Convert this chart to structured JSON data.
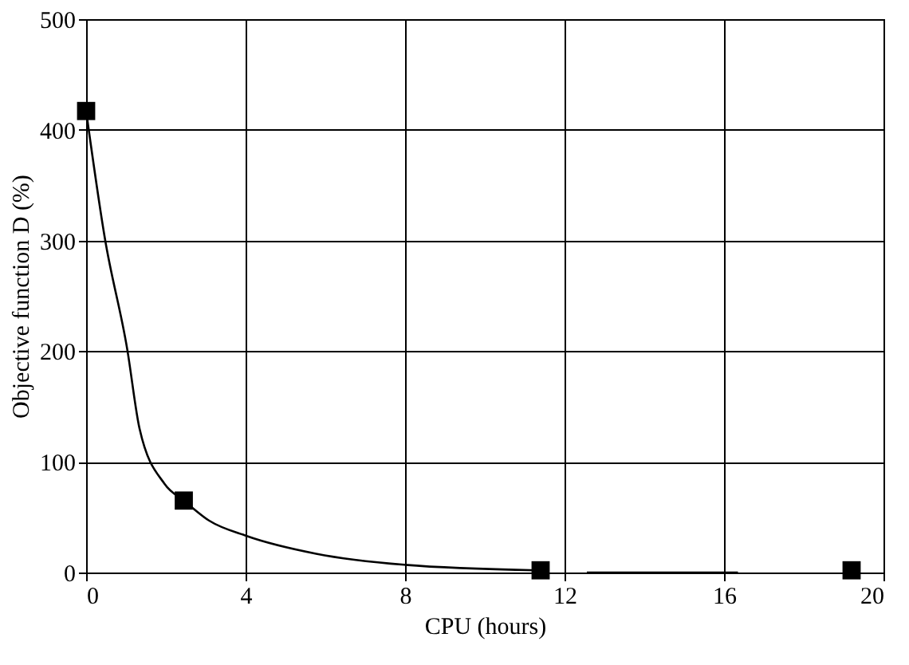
{
  "chart_data": {
    "type": "line",
    "xlabel": "CPU (hours)",
    "ylabel": "Objective function D (%)",
    "xlim": [
      0,
      20
    ],
    "xticks": [
      0,
      4,
      8,
      12,
      16,
      20
    ],
    "ylim": [
      0,
      500
    ],
    "yticks": [
      0,
      100,
      200,
      300,
      400,
      500
    ],
    "grid": true,
    "series": [
      {
        "color": "#000000",
        "marker": "none",
        "line_style": "solid",
        "x": [
          0,
          0.47,
          1.03,
          1.34,
          1.97,
          2.45,
          3.08,
          4.03,
          5.77,
          7.98,
          11.3,
          12.0,
          12.56,
          16.35
        ],
        "values": [
          417,
          302,
          202,
          130,
          80,
          65,
          47,
          33,
          17,
          7,
          2,
          null,
          0,
          0
        ]
      },
      {
        "type": "scatter",
        "color": "#000000",
        "marker": "square",
        "x": [
          0,
          2.45,
          11.4,
          19.2
        ],
        "values": [
          417,
          65,
          2,
          2
        ]
      }
    ]
  }
}
